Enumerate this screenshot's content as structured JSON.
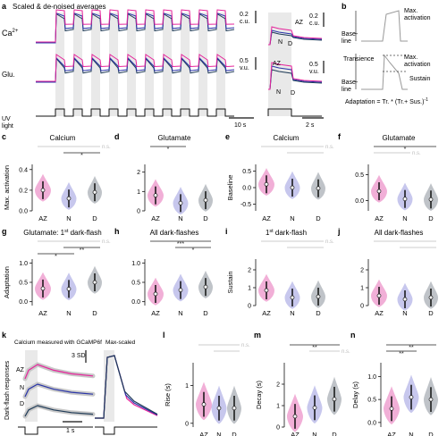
{
  "figure": {
    "panel_letters": [
      "a",
      "b",
      "c",
      "d",
      "e",
      "f",
      "g",
      "h",
      "i",
      "j",
      "k",
      "l",
      "m",
      "n"
    ],
    "a": {
      "title": "Scaled & de-noised averages",
      "ca_label": "Ca",
      "ca_sup": "2+",
      "glu_label": "Glu.",
      "uv_label": "UV",
      "uv_label2": "light",
      "scale_ca": "0.2",
      "scale_ca_unit": "c.u.",
      "scale_glu": "0.5",
      "scale_glu_unit": "v.u.",
      "time_scale": "10 s",
      "zoom_time_scale": "2 s",
      "zoom_labels": {
        "az": "AZ",
        "n": "N",
        "d": "D"
      }
    },
    "b": {
      "baseline": "Base-",
      "baseline2": "line",
      "max_activation": "Max.",
      "max_activation2": "activation",
      "transience": "Transience",
      "sustain": "Sustain",
      "formula": "Adaptation = Tr. * (Tr.+ Sus.)",
      "formula_sup": "-1"
    },
    "colors": {
      "az": "#e14ea6",
      "n": "#8283d8",
      "d": "#707b85",
      "az_trace": "#e6249b",
      "n_trace": "#2a35a8",
      "d_trace": "#1f3b57",
      "gray": "#cfcfcf"
    },
    "violins": [
      {
        "id": "c",
        "title": "Calcium",
        "ylabel": "Max. activation",
        "yticks": [
          "0.4",
          "0.2",
          "0.0"
        ],
        "ymin": 0,
        "ymax": 0.45,
        "medians": [
          0.2,
          0.12,
          0.18
        ],
        "sig": [
          {
            "a": 0,
            "b": 2,
            "label": "n.s.",
            "gray": true
          },
          {
            "a": 1,
            "b": 2,
            "label": "*",
            "gray": false
          }
        ]
      },
      {
        "id": "d",
        "title": "Glutamate",
        "ylabel": "",
        "yticks": [
          "2",
          "1",
          "0"
        ],
        "ymin": 0,
        "ymax": 2.4,
        "medians": [
          0.8,
          0.4,
          0.55
        ],
        "sig": [
          {
            "a": 0,
            "b": 1,
            "label": "*",
            "gray": false
          }
        ]
      },
      {
        "id": "e",
        "title": "Calcium",
        "ylabel": "Baseline",
        "yticks": [
          "0.5",
          "0.0",
          "-0.5"
        ],
        "ymin": -0.7,
        "ymax": 0.7,
        "medians": [
          0.1,
          0.0,
          -0.02
        ],
        "sig": [
          {
            "a": 0,
            "b": 2,
            "label": "n.s.",
            "gray": true
          },
          {
            "a": 1,
            "b": 2,
            "label": "",
            "gray": true
          }
        ]
      },
      {
        "id": "f",
        "title": "Glutamate",
        "ylabel": "",
        "yticks": [
          "0.5",
          "0.0"
        ],
        "ymin": -0.2,
        "ymax": 0.7,
        "medians": [
          0.18,
          0.03,
          0.02
        ],
        "sig": [
          {
            "a": 0,
            "b": 2,
            "label": "*",
            "gray": false
          },
          {
            "a": 0,
            "b": 1,
            "label": "n.s.",
            "gray": true
          }
        ]
      },
      {
        "id": "g",
        "title": "Glutamate: 1",
        "title_sup": "st",
        "title_tail": " dark-flash",
        "ylabel": "Adaptation",
        "yticks": [
          "1.0",
          "0.5",
          "0.0"
        ],
        "ymin": -0.1,
        "ymax": 1.1,
        "medians": [
          0.34,
          0.33,
          0.5
        ],
        "sig": [
          {
            "a": 0,
            "b": 2,
            "label": "n.s.",
            "gray": true
          },
          {
            "a": 1,
            "b": 2,
            "label": "**",
            "gray": false
          },
          {
            "a": 0,
            "b": 1,
            "label": "*",
            "gray": false
          }
        ]
      },
      {
        "id": "h",
        "title": "All dark-flashes",
        "ylabel": "",
        "yticks": [
          "1.0",
          "0.5",
          "0.0"
        ],
        "ymin": -0.1,
        "ymax": 1.1,
        "medians": [
          0.2,
          0.3,
          0.38
        ],
        "sig": [
          {
            "a": 0,
            "b": 2,
            "label": "***",
            "gray": false
          },
          {
            "a": 1,
            "b": 2,
            "label": "*",
            "gray": false
          }
        ]
      },
      {
        "id": "i",
        "title": "1",
        "title_sup": "st",
        "title_tail": " dark-flash",
        "ylabel": "Sustain",
        "yticks": [
          "2",
          "1",
          "0"
        ],
        "ymin": 0,
        "ymax": 2.6,
        "medians": [
          0.85,
          0.45,
          0.5
        ],
        "sig": [
          {
            "a": 0,
            "b": 2,
            "label": "n.s.",
            "gray": true
          },
          {
            "a": 1,
            "b": 2,
            "label": "",
            "gray": true
          }
        ]
      },
      {
        "id": "j",
        "title": "All dark-flashes",
        "ylabel": "",
        "yticks": [
          "2",
          "1",
          "0"
        ],
        "ymin": 0,
        "ymax": 2.6,
        "medians": [
          0.55,
          0.35,
          0.45
        ],
        "sig": [
          {
            "a": 0,
            "b": 2,
            "label": "",
            "gray": true
          },
          {
            "a": 1,
            "b": 2,
            "label": "",
            "gray": true
          }
        ]
      },
      {
        "id": "l",
        "title": "",
        "ylabel": "Rise (s)",
        "yticks": [
          "1",
          "0"
        ],
        "ymin": -0.1,
        "ymax": 1.6,
        "medians": [
          0.5,
          0.4,
          0.4
        ],
        "sig": [
          {
            "a": 0,
            "b": 2,
            "label": "n.s.",
            "gray": true
          },
          {
            "a": 1,
            "b": 2,
            "label": "",
            "gray": true
          }
        ]
      },
      {
        "id": "m",
        "title": "",
        "ylabel": "Decay (s)",
        "yticks": [
          "2",
          "1",
          "0"
        ],
        "ymin": 0,
        "ymax": 3.0,
        "medians": [
          0.5,
          0.9,
          1.3
        ],
        "sig": [
          {
            "a": 0,
            "b": 2,
            "label": "**",
            "gray": false
          },
          {
            "a": 1,
            "b": 2,
            "label": "n.s.",
            "gray": true
          }
        ]
      },
      {
        "id": "n",
        "title": "",
        "ylabel": "Delay (s)",
        "yticks": [
          "1.0",
          "0.5",
          "0.0"
        ],
        "ymin": -0.1,
        "ymax": 1.3,
        "medians": [
          0.3,
          0.55,
          0.5
        ],
        "sig": [
          {
            "a": 0,
            "b": 2,
            "label": "**",
            "gray": false
          },
          {
            "a": 0,
            "b": 1,
            "label": "**",
            "gray": false
          }
        ]
      }
    ],
    "group_labels": [
      "AZ",
      "N",
      "D"
    ],
    "k": {
      "title": "Calcium measured with GCaMP6f",
      "title2": "Max-scaled",
      "ylabel": "Dark-flash responses",
      "scale": "3 SD",
      "time_scale": "1 s",
      "labels": [
        "AZ",
        "N",
        "D"
      ]
    }
  }
}
